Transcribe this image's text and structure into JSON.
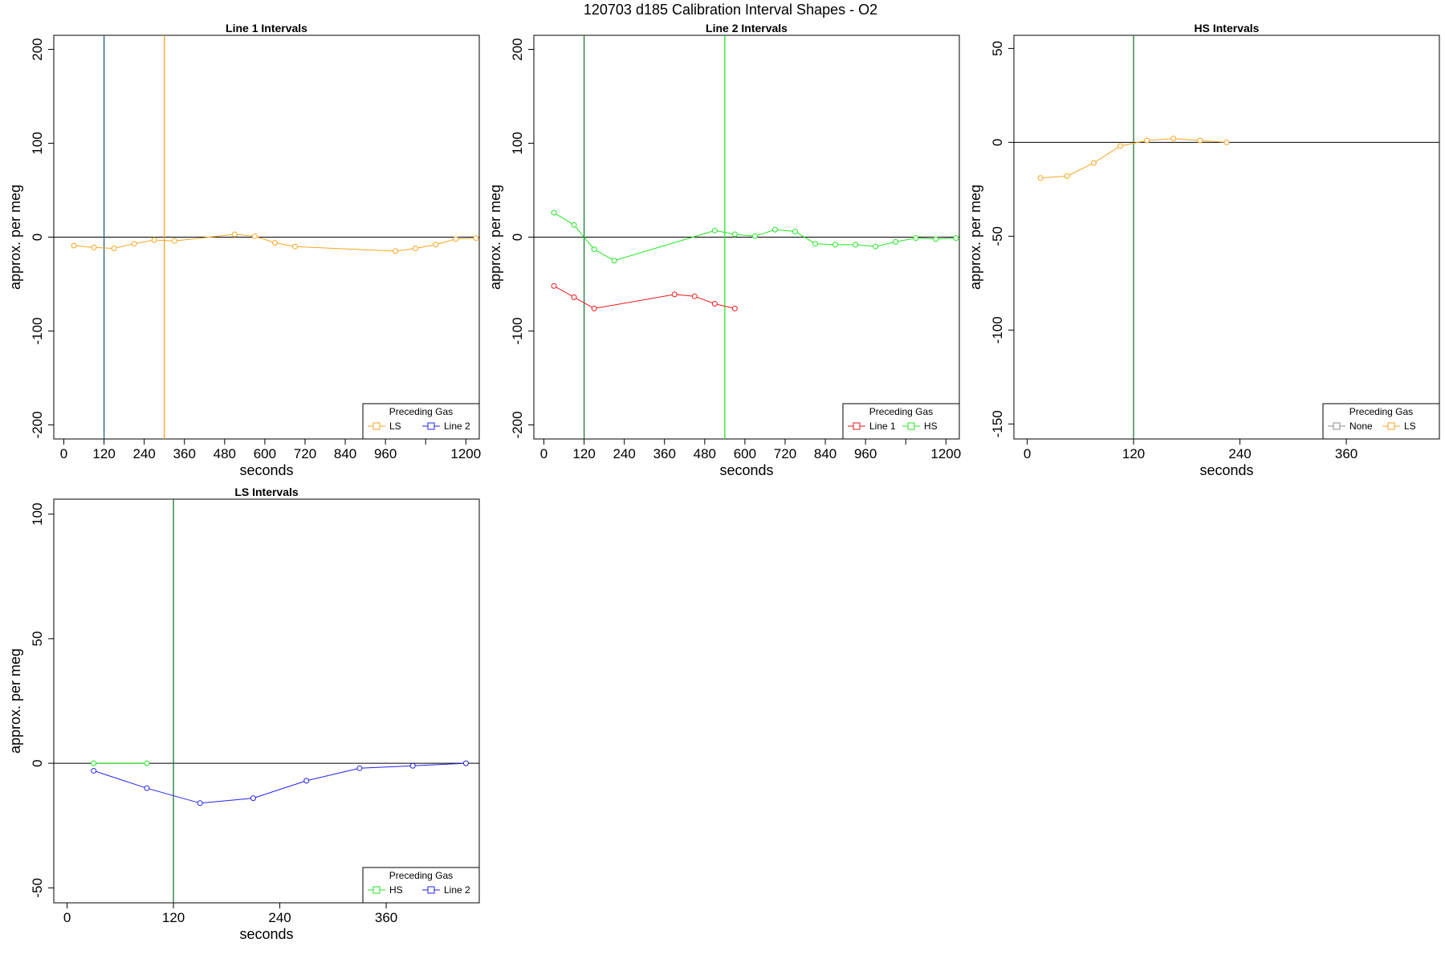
{
  "figure_title": "120703   d185   Calibration Interval Shapes - O2",
  "colors": {
    "LS": "#f5a623",
    "Line 1": "#e8191c",
    "Line 2": "#2222e6",
    "HS": "#23e623",
    "None": "#8c8c8c",
    "vline_dark_green": "#1f7a3a",
    "vline_teal": "#1e5f8c",
    "zero_line": "#000000"
  },
  "chart_data": [
    {
      "type": "line",
      "title": "Line 1 Intervals",
      "xlabel": "seconds",
      "ylabel": "approx. per meg",
      "xlim": [
        -30,
        1240
      ],
      "ylim": [
        -215,
        215
      ],
      "xticks": [
        0,
        120,
        240,
        360,
        480,
        600,
        720,
        840,
        960,
        1080,
        1200
      ],
      "xtick_labels": [
        "0",
        "120",
        "240",
        "360",
        "480",
        "600",
        "720",
        "840",
        "960",
        "",
        "1200"
      ],
      "yticks": [
        -200,
        -100,
        0,
        100,
        200
      ],
      "ytick_labels": [
        "-200",
        "-100",
        "0",
        "100",
        "200"
      ],
      "hline": 0,
      "vlines": [
        {
          "x": 120,
          "color": "#1e5f8c"
        },
        {
          "x": 300,
          "color": "#f5a623"
        }
      ],
      "legend": {
        "title": "Preceding Gas",
        "position": "bottom-right",
        "entries": [
          "LS",
          "Line 2"
        ]
      },
      "series": [
        {
          "name": "LS",
          "color": "#f5a623",
          "x": [
            30,
            90,
            150,
            210,
            270,
            330,
            510,
            570,
            630,
            690,
            990,
            1050,
            1110,
            1170,
            1230
          ],
          "y": [
            -9,
            -11,
            -12,
            -7,
            -3,
            -4,
            3,
            1,
            -6,
            -10,
            -15,
            -12,
            -8,
            -2,
            -1
          ]
        }
      ]
    },
    {
      "type": "line",
      "title": "Line 2 Intervals",
      "xlabel": "seconds",
      "ylabel": "approx. per meg",
      "xlim": [
        -30,
        1240
      ],
      "ylim": [
        -215,
        215
      ],
      "xticks": [
        0,
        120,
        240,
        360,
        480,
        600,
        720,
        840,
        960,
        1080,
        1200
      ],
      "xtick_labels": [
        "0",
        "120",
        "240",
        "360",
        "480",
        "600",
        "720",
        "840",
        "960",
        "",
        "1200"
      ],
      "yticks": [
        -200,
        -100,
        0,
        100,
        200
      ],
      "ytick_labels": [
        "-200",
        "-100",
        "0",
        "100",
        "200"
      ],
      "hline": 0,
      "vlines": [
        {
          "x": 120,
          "color": "#1f7a3a"
        },
        {
          "x": 540,
          "color": "#23e623"
        }
      ],
      "legend": {
        "title": "Preceding Gas",
        "position": "bottom-right",
        "entries": [
          "Line 1",
          "HS"
        ]
      },
      "series": [
        {
          "name": "Line 1",
          "color": "#e8191c",
          "x": [
            30,
            90,
            150,
            390,
            450,
            510,
            570
          ],
          "y": [
            -52,
            -64,
            -76,
            -61,
            -63,
            -71,
            -76
          ]
        },
        {
          "name": "HS",
          "color": "#23e623",
          "x": [
            30,
            90,
            150,
            210,
            510,
            570,
            630,
            690,
            750,
            810,
            870,
            930,
            990,
            1050,
            1110,
            1170,
            1230,
            1290
          ],
          "y": [
            26,
            13,
            -13,
            -25,
            7,
            3,
            1,
            8,
            6,
            -7,
            -8,
            -8,
            -10,
            -5,
            -1,
            -2,
            -1,
            -2
          ]
        }
      ]
    },
    {
      "type": "line",
      "title": "HS Intervals",
      "xlabel": "seconds",
      "ylabel": "approx. per meg",
      "xlim": [
        -15,
        465
      ],
      "ylim": [
        -158,
        57
      ],
      "xticks": [
        0,
        120,
        240,
        360
      ],
      "xtick_labels": [
        "0",
        "120",
        "240",
        "360"
      ],
      "yticks": [
        -150,
        -100,
        -50,
        0,
        50
      ],
      "ytick_labels": [
        "-150",
        "-100",
        "-50",
        "0",
        "50"
      ],
      "hline": 0,
      "vlines": [
        {
          "x": 120,
          "color": "#1f7a3a"
        }
      ],
      "legend": {
        "title": "Preceding Gas",
        "position": "bottom-right",
        "entries": [
          "None",
          "LS"
        ]
      },
      "series": [
        {
          "name": "LS",
          "color": "#f5a623",
          "x": [
            15,
            45,
            75,
            105,
            135,
            165,
            195,
            225
          ],
          "y": [
            -19,
            -18,
            -11,
            -2,
            1,
            2,
            1,
            0
          ]
        }
      ]
    },
    {
      "type": "line",
      "title": "LS Intervals",
      "xlabel": "seconds",
      "ylabel": "approx. per meg",
      "xlim": [
        -15,
        465
      ],
      "ylim": [
        -56,
        106
      ],
      "xticks": [
        0,
        120,
        240,
        360
      ],
      "xtick_labels": [
        "0",
        "120",
        "240",
        "360"
      ],
      "yticks": [
        -50,
        0,
        50,
        100
      ],
      "ytick_labels": [
        "-50",
        "0",
        "50",
        "100"
      ],
      "hline": 0,
      "vlines": [
        {
          "x": 120,
          "color": "#1f7a3a"
        }
      ],
      "legend": {
        "title": "Preceding Gas",
        "position": "bottom-right",
        "entries": [
          "HS",
          "Line 2"
        ]
      },
      "series": [
        {
          "name": "HS",
          "color": "#23e623",
          "x": [
            30,
            90
          ],
          "y": [
            0,
            0
          ]
        },
        {
          "name": "Line 2",
          "color": "#2222e6",
          "x": [
            30,
            90,
            150,
            210,
            270,
            330,
            390,
            450
          ],
          "y": [
            -3,
            -10,
            -16,
            -14,
            -7,
            -2,
            -1,
            0
          ]
        }
      ]
    }
  ]
}
